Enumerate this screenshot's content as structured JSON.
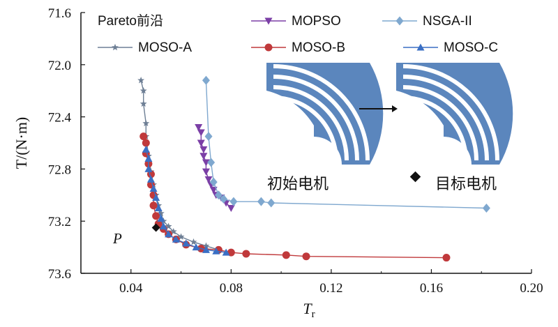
{
  "chart_data": {
    "type": "line",
    "title": "",
    "xlabel": "T",
    "xlabel_sub": "r",
    "ylabel": "T/(N·m)",
    "xlim": [
      0.02,
      0.2
    ],
    "ylim": [
      71.6,
      73.6
    ],
    "y_inverted": true,
    "xticks": [
      "0.04",
      "0.08",
      "0.12",
      "0.16",
      "0.20"
    ],
    "yticks": [
      "71.6",
      "72.0",
      "72.4",
      "72.8",
      "73.2",
      "73.6"
    ],
    "grid": false,
    "legend_title": "Pareto前沿",
    "legend_position": "top",
    "series": [
      {
        "name": "MOPSO",
        "color": "#7b3fa6",
        "marker": "triangle-down",
        "points": [
          [
            0.067,
            72.48
          ],
          [
            0.068,
            72.52
          ],
          [
            0.068,
            72.6
          ],
          [
            0.069,
            72.65
          ],
          [
            0.069,
            72.7
          ],
          [
            0.07,
            72.75
          ],
          [
            0.07,
            72.82
          ],
          [
            0.071,
            72.88
          ],
          [
            0.072,
            72.92
          ],
          [
            0.073,
            72.96
          ],
          [
            0.074,
            73.0
          ],
          [
            0.076,
            73.02
          ],
          [
            0.078,
            73.06
          ],
          [
            0.08,
            73.1
          ]
        ]
      },
      {
        "name": "NSGA-II",
        "color": "#7fa8cf",
        "marker": "diamond",
        "points": [
          [
            0.07,
            72.12
          ],
          [
            0.071,
            72.55
          ],
          [
            0.072,
            72.75
          ],
          [
            0.073,
            72.9
          ],
          [
            0.075,
            73.0
          ],
          [
            0.077,
            73.03
          ],
          [
            0.081,
            73.05
          ],
          [
            0.092,
            73.05
          ],
          [
            0.096,
            73.06
          ],
          [
            0.182,
            73.1
          ]
        ]
      },
      {
        "name": "MOSO-A",
        "color": "#6e7f95",
        "marker": "star",
        "points": [
          [
            0.044,
            72.12
          ],
          [
            0.045,
            72.2
          ],
          [
            0.045,
            72.3
          ],
          [
            0.046,
            72.45
          ],
          [
            0.046,
            72.55
          ],
          [
            0.047,
            72.7
          ],
          [
            0.048,
            72.82
          ],
          [
            0.049,
            72.92
          ],
          [
            0.05,
            73.0
          ],
          [
            0.051,
            73.08
          ],
          [
            0.052,
            73.14
          ],
          [
            0.053,
            73.2
          ],
          [
            0.055,
            73.24
          ],
          [
            0.057,
            73.28
          ],
          [
            0.06,
            73.32
          ],
          [
            0.065,
            73.36
          ],
          [
            0.07,
            73.39
          ],
          [
            0.075,
            73.42
          ]
        ]
      },
      {
        "name": "MOSO-B",
        "color": "#c0393b",
        "marker": "circle",
        "points": [
          [
            0.045,
            72.55
          ],
          [
            0.046,
            72.6
          ],
          [
            0.046,
            72.68
          ],
          [
            0.047,
            72.76
          ],
          [
            0.048,
            72.84
          ],
          [
            0.048,
            72.92
          ],
          [
            0.049,
            73.0
          ],
          [
            0.049,
            73.08
          ],
          [
            0.05,
            73.16
          ],
          [
            0.051,
            73.22
          ],
          [
            0.053,
            73.26
          ],
          [
            0.055,
            73.3
          ],
          [
            0.058,
            73.34
          ],
          [
            0.062,
            73.38
          ],
          [
            0.068,
            73.41
          ],
          [
            0.075,
            73.42
          ],
          [
            0.08,
            73.44
          ],
          [
            0.086,
            73.45
          ],
          [
            0.102,
            73.46
          ],
          [
            0.11,
            73.47
          ],
          [
            0.166,
            73.48
          ]
        ]
      },
      {
        "name": "MOSO-C",
        "color": "#3a6fc4",
        "marker": "triangle-up",
        "points": [
          [
            0.046,
            72.65
          ],
          [
            0.047,
            72.72
          ],
          [
            0.047,
            72.8
          ],
          [
            0.048,
            72.88
          ],
          [
            0.049,
            72.95
          ],
          [
            0.05,
            73.02
          ],
          [
            0.051,
            73.1
          ],
          [
            0.052,
            73.18
          ],
          [
            0.053,
            73.24
          ],
          [
            0.055,
            73.3
          ],
          [
            0.058,
            73.34
          ],
          [
            0.062,
            73.37
          ],
          [
            0.066,
            73.4
          ],
          [
            0.07,
            73.42
          ],
          [
            0.074,
            73.43
          ],
          [
            0.078,
            73.44
          ]
        ]
      }
    ],
    "annotations": {
      "point_label": "P",
      "target_marker": [
        0.05,
        73.25
      ],
      "initial_motor_label": "初始电机",
      "target_motor_label": "目标电机"
    }
  }
}
